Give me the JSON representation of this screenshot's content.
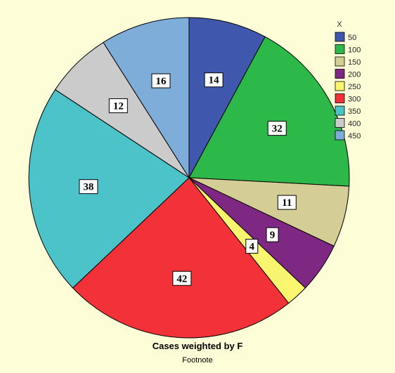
{
  "chart_data": {
    "type": "pie",
    "legend_title": "X",
    "legend_position": "top-right",
    "slices": [
      {
        "label": "50",
        "value": 14,
        "color": "#3f58ad"
      },
      {
        "label": "100",
        "value": 32,
        "color": "#2db84a"
      },
      {
        "label": "150",
        "value": 11,
        "color": "#d4cd96"
      },
      {
        "label": "200",
        "value": 9,
        "color": "#7e2883"
      },
      {
        "label": "250",
        "value": 4,
        "color": "#f9f56f"
      },
      {
        "label": "300",
        "value": 42,
        "color": "#f23238"
      },
      {
        "label": "350",
        "value": 38,
        "color": "#4bc3c9"
      },
      {
        "label": "400",
        "value": 12,
        "color": "#cbcbcb"
      },
      {
        "label": "450",
        "value": 16,
        "color": "#7eadd9"
      }
    ]
  },
  "caption": "Cases weighted by F",
  "footnote": "Footnote"
}
